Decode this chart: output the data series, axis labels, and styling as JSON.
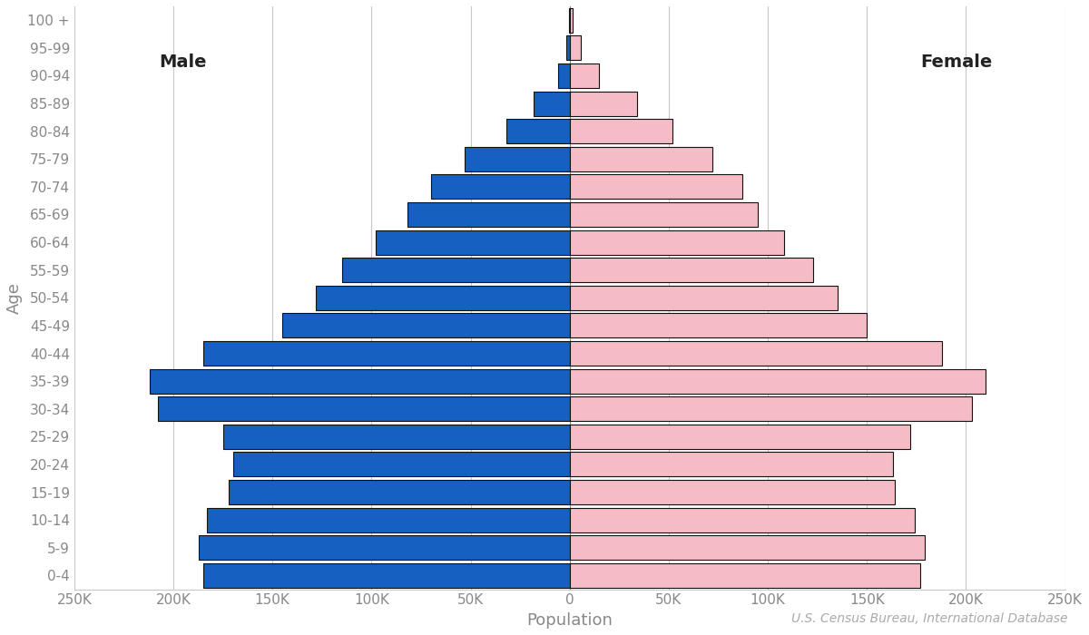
{
  "xlabel": "Population",
  "ylabel": "Age",
  "source": "U.S. Census Bureau, International Database",
  "age_groups": [
    "0-4",
    "5-9",
    "10-14",
    "15-19",
    "20-24",
    "25-29",
    "30-34",
    "35-39",
    "40-44",
    "45-49",
    "50-54",
    "55-59",
    "60-64",
    "65-69",
    "70-74",
    "75-79",
    "80-84",
    "85-89",
    "90-94",
    "95-99",
    "100 +"
  ],
  "male": [
    185000,
    187000,
    183000,
    172000,
    170000,
    175000,
    208000,
    212000,
    185000,
    145000,
    128000,
    115000,
    98000,
    82000,
    70000,
    53000,
    32000,
    18000,
    6000,
    1800,
    300
  ],
  "female": [
    177000,
    179000,
    174000,
    164000,
    163000,
    172000,
    203000,
    210000,
    188000,
    150000,
    135000,
    123000,
    108000,
    95000,
    87000,
    72000,
    52000,
    34000,
    15000,
    5500,
    1400
  ],
  "male_color": "#1560c0",
  "female_color": "#f5bcc5",
  "male_label": "Male",
  "female_label": "Female",
  "xlim": 250000,
  "tick_values": [
    -250000,
    -200000,
    -150000,
    -100000,
    -50000,
    0,
    50000,
    100000,
    150000,
    200000,
    250000
  ],
  "tick_labels": [
    "250K",
    "200K",
    "150K",
    "100K",
    "50K",
    "0",
    "50K",
    "100K",
    "150K",
    "200K",
    "250K"
  ],
  "bar_edgecolor": "#111111",
  "bar_linewidth": 0.8,
  "background_color": "#ffffff",
  "grid_color": "#c8c8c8",
  "label_fontsize": 13,
  "tick_fontsize": 11,
  "annotation_fontsize": 10,
  "male_label_fontsize": 14,
  "female_label_fontsize": 14,
  "axis_color": "#888888",
  "tick_color": "#888888"
}
